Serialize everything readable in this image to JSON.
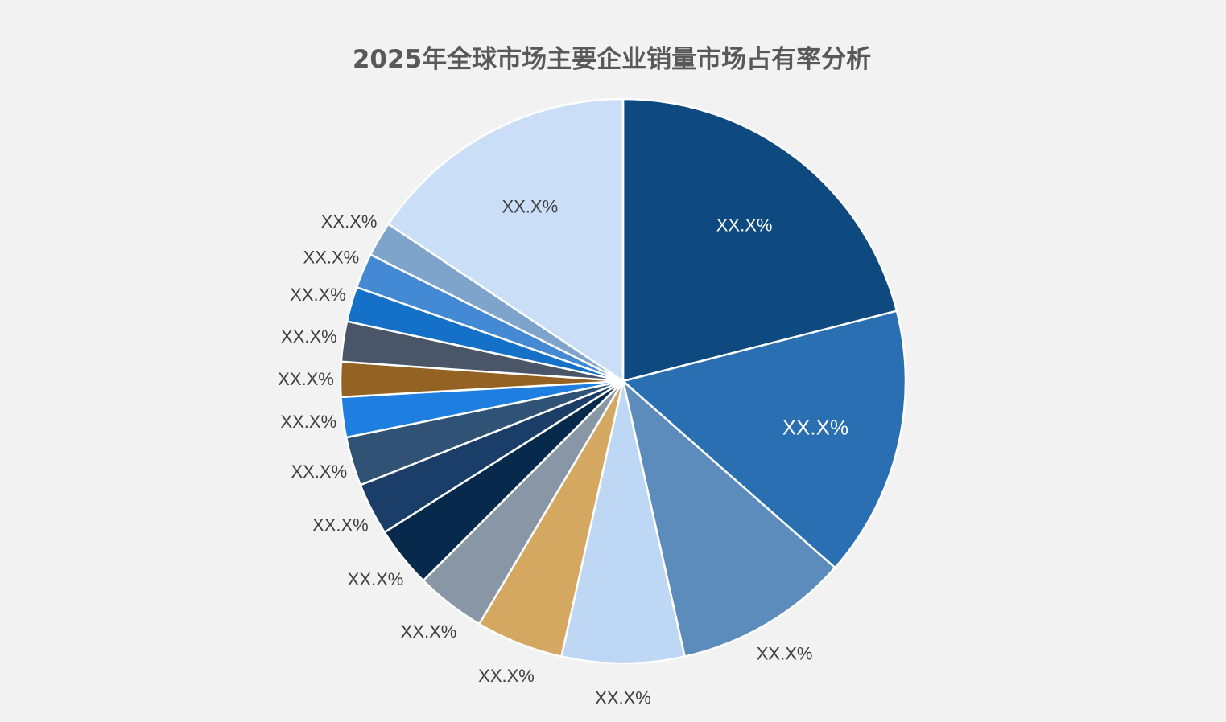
{
  "chart_data": {
    "type": "pie",
    "title": "2025年全球市场主要企业销量市场占有率分析",
    "start_angle_deg": 0,
    "direction": "clockwise",
    "slices": [
      {
        "value": 21.0,
        "label": "XX.X%",
        "color": "#0e4a80",
        "label_inside": true,
        "label_color": "#ffffff"
      },
      {
        "value": 15.5,
        "label": "XX.X%",
        "color": "#2a6fb1",
        "label_inside": true,
        "label_color": "#ffffff"
      },
      {
        "value": 10.0,
        "label": "XX.X%",
        "color": "#5b8cbb",
        "label_inside": false,
        "label_color": "#404040"
      },
      {
        "value": 7.0,
        "label": "XX.X%",
        "color": "#bdd7f5",
        "label_inside": false,
        "label_color": "#404040"
      },
      {
        "value": 5.0,
        "label": "XX.X%",
        "color": "#d5a862",
        "label_inside": false,
        "label_color": "#404040"
      },
      {
        "value": 4.0,
        "label": "XX.X%",
        "color": "#8896a6",
        "label_inside": false,
        "label_color": "#404040"
      },
      {
        "value": 3.5,
        "label": "XX.X%",
        "color": "#072a4c",
        "label_inside": false,
        "label_color": "#404040"
      },
      {
        "value": 3.0,
        "label": "XX.X%",
        "color": "#1a3e68",
        "label_inside": false,
        "label_color": "#404040"
      },
      {
        "value": 2.8,
        "label": "XX.X%",
        "color": "#2f5275",
        "label_inside": false,
        "label_color": "#404040"
      },
      {
        "value": 2.3,
        "label": "XX.X%",
        "color": "#1f7fe0",
        "label_inside": false,
        "label_color": "#404040"
      },
      {
        "value": 2.0,
        "label": "XX.X%",
        "color": "#946222",
        "label_inside": false,
        "label_color": "#404040"
      },
      {
        "value": 2.3,
        "label": "XX.X%",
        "color": "#4a5567",
        "label_inside": false,
        "label_color": "#404040"
      },
      {
        "value": 2.0,
        "label": "XX.X%",
        "color": "#1570c8",
        "label_inside": false,
        "label_color": "#404040"
      },
      {
        "value": 2.0,
        "label": "XX.X%",
        "color": "#4389d4",
        "label_inside": false,
        "label_color": "#404040"
      },
      {
        "value": 2.0,
        "label": "XX.X%",
        "color": "#7ea4cb",
        "label_inside": false,
        "label_color": "#404040"
      },
      {
        "value": 15.6,
        "label": "XX.X%",
        "color": "#cadff7",
        "label_inside": true,
        "label_color": "#404040"
      }
    ],
    "legend": "none",
    "background_color": "#f2f2f2",
    "title_color": "#595959"
  }
}
